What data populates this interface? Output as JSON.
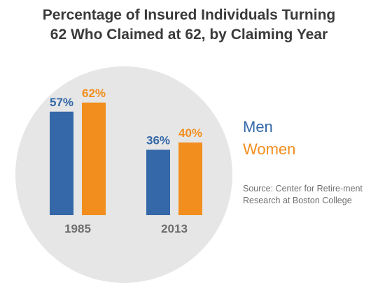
{
  "title_line1": "Percentage of Insured Individuals Turning",
  "title_line2": "62 Who Claimed at 62, by Claiming Year",
  "source": "Source: Center for Retire-ment Research at Boston College",
  "colors": {
    "men": "#3468A8",
    "women": "#F28E1E",
    "background_circle": "#E6E6E6",
    "category_label": "#6e6e6e"
  },
  "chart_data": {
    "type": "bar",
    "title": "Percentage of Insured Individuals Turning 62 Who Claimed at 62, by Claiming Year",
    "categories": [
      "1985",
      "2013"
    ],
    "series": [
      {
        "name": "Men",
        "values": [
          57,
          36
        ],
        "labels": [
          "57%",
          "36%"
        ]
      },
      {
        "name": "Women",
        "values": [
          62,
          40
        ],
        "labels": [
          "62%",
          "40%"
        ]
      }
    ],
    "ylim": [
      0,
      100
    ],
    "legend": "right",
    "grid": false
  }
}
